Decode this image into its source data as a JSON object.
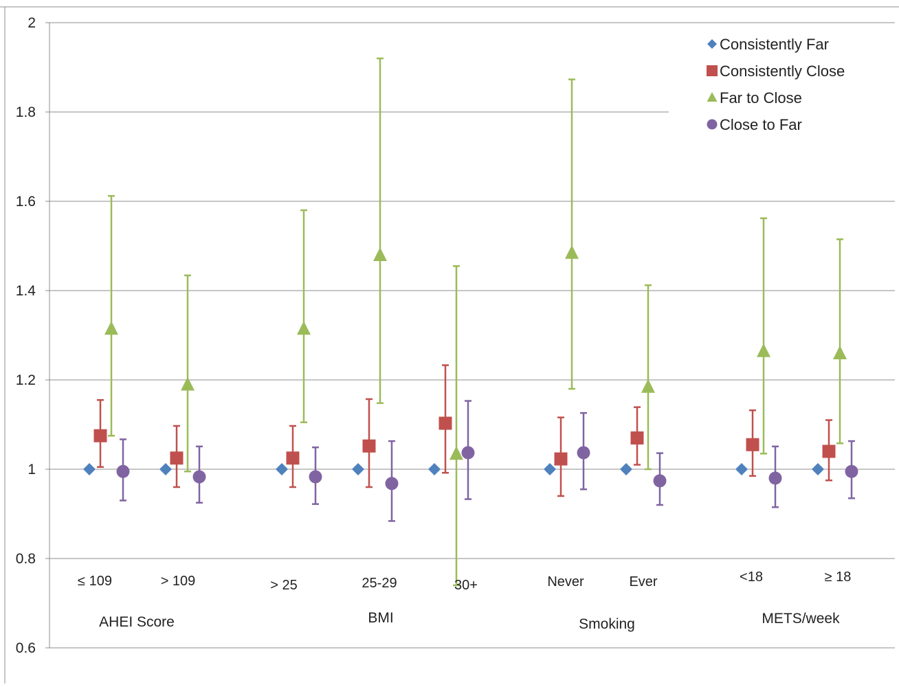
{
  "chart_data": {
    "type": "scatter",
    "ylim": [
      0.6,
      2.0
    ],
    "yticks": [
      "0.6",
      "0.8",
      "1",
      "1.2",
      "1.4",
      "1.6",
      "1.8",
      "2"
    ],
    "grid": true,
    "legend_position": "top-right",
    "categories": [
      "≤ 109",
      "> 109",
      "> 25",
      "25-29",
      "30+",
      "Never",
      "Ever",
      "<18",
      "≥ 18"
    ],
    "groups": [
      {
        "label": "AHEI Score",
        "categories": [
          "≤ 109",
          "> 109"
        ]
      },
      {
        "label": "BMI",
        "categories": [
          "> 25",
          "25-29",
          "30+"
        ]
      },
      {
        "label": "Smoking",
        "categories": [
          "Never",
          "Ever"
        ]
      },
      {
        "label": "METS/week",
        "categories": [
          "<18",
          "≥ 18"
        ]
      }
    ],
    "series": [
      {
        "name": "Consistently Far",
        "marker": "diamond",
        "color": "#4F81BD",
        "values": [
          1.0,
          1.0,
          1.0,
          1.0,
          1.0,
          1.0,
          1.0,
          1.0,
          1.0
        ]
      },
      {
        "name": "Consistently Close",
        "marker": "square",
        "color": "#C0504D",
        "values": [
          1.075,
          1.025,
          1.025,
          1.052,
          1.103,
          1.023,
          1.07,
          1.055,
          1.04
        ],
        "lower": [
          1.005,
          0.96,
          0.96,
          0.96,
          0.992,
          0.94,
          1.01,
          0.985,
          0.975
        ],
        "upper": [
          1.155,
          1.097,
          1.097,
          1.157,
          1.233,
          1.116,
          1.139,
          1.132,
          1.11
        ]
      },
      {
        "name": "Far to Close",
        "marker": "triangle",
        "color": "#9BBB59",
        "values": [
          1.315,
          1.19,
          1.315,
          1.48,
          1.035,
          1.485,
          1.185,
          1.265,
          1.26
        ],
        "lower": [
          1.075,
          0.995,
          1.105,
          1.148,
          0.74,
          1.18,
          1.0,
          1.035,
          1.058
        ],
        "upper": [
          1.612,
          1.434,
          1.58,
          1.92,
          1.455,
          1.873,
          1.412,
          1.562,
          1.515
        ]
      },
      {
        "name": "Close to Far",
        "marker": "circle",
        "color": "#8064A2",
        "values": [
          0.995,
          0.983,
          0.983,
          0.968,
          1.037,
          1.037,
          0.974,
          0.98,
          0.995
        ],
        "lower": [
          0.93,
          0.925,
          0.922,
          0.884,
          0.933,
          0.955,
          0.92,
          0.915,
          0.935
        ],
        "upper": [
          1.067,
          1.051,
          1.049,
          1.063,
          1.153,
          1.126,
          1.036,
          1.051,
          1.063
        ]
      }
    ]
  }
}
